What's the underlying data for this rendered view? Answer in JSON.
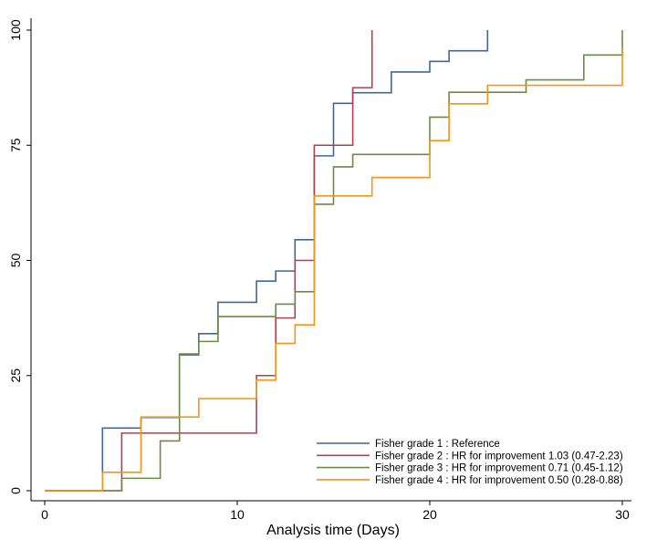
{
  "chart_data": {
    "type": "line",
    "step": true,
    "title": "",
    "xlabel": "Analysis time (Days)",
    "ylabel": "",
    "xlim": [
      0,
      30
    ],
    "ylim": [
      0,
      100
    ],
    "xticks": [
      0,
      10,
      20,
      30
    ],
    "yticks": [
      0,
      25,
      50,
      75,
      100
    ],
    "grid": false,
    "legend_position": "bottom-right",
    "series": [
      {
        "name": "Fisher grade 1 : Reference",
        "color": "#3d6994",
        "x": [
          0,
          3,
          5,
          7,
          8,
          9,
          11,
          12,
          13,
          14,
          15,
          16,
          18,
          20,
          21,
          23
        ],
        "y": [
          0,
          13.6,
          15.9,
          29.5,
          34.1,
          40.9,
          45.5,
          47.7,
          54.5,
          72.7,
          84.1,
          86.4,
          90.9,
          93.2,
          95.5,
          100
        ]
      },
      {
        "name": "Fisher grade 2 : HR for improvement 1.03 (0.47-2.23)",
        "color": "#a9434f",
        "x": [
          0,
          4,
          11,
          12,
          13,
          14,
          16,
          17
        ],
        "y": [
          0,
          12.5,
          25,
          37.5,
          50,
          75,
          87.5,
          100
        ]
      },
      {
        "name": "Fisher grade 3 : HR for improvement 0.71 (0.45-1.12)",
        "color": "#6b8a45",
        "x": [
          0,
          4,
          6,
          7,
          8,
          9,
          12,
          13,
          14,
          15,
          16,
          20,
          21,
          25,
          28,
          30
        ],
        "y": [
          0,
          2.7,
          10.8,
          29.7,
          32.4,
          37.8,
          40.5,
          43.2,
          62.2,
          70.3,
          73,
          81.1,
          86.5,
          89.2,
          94.6,
          100
        ]
      },
      {
        "name": "Fisher grade 4 : HR for improvement 0.50 (0.28-0.88)",
        "color": "#f0961c",
        "x": [
          0,
          3,
          5,
          8,
          11,
          12,
          13,
          14,
          17,
          20,
          21,
          23,
          30
        ],
        "y": [
          0,
          4,
          16,
          20,
          24,
          32,
          36,
          64,
          68,
          76,
          84,
          88,
          96
        ]
      }
    ]
  }
}
